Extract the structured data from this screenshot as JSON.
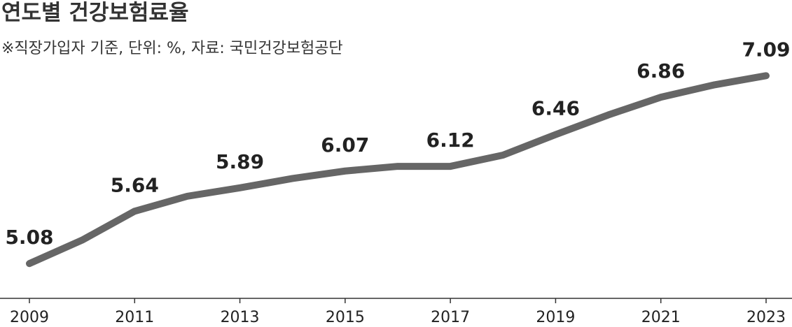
{
  "chart_data": {
    "type": "line",
    "title": "연도별 건강보험료율",
    "subtitle": "※직장가입자 기준, 단위: %, 자료: 국민건강보험공단",
    "x": [
      2009,
      2010,
      2011,
      2012,
      2013,
      2014,
      2015,
      2016,
      2017,
      2018,
      2019,
      2020,
      2021,
      2022,
      2023
    ],
    "values": [
      5.08,
      5.33,
      5.64,
      5.8,
      5.89,
      5.99,
      6.07,
      6.12,
      6.12,
      6.24,
      6.46,
      6.67,
      6.86,
      6.99,
      7.09
    ],
    "color": "#666666",
    "xlim": [
      2009,
      2023
    ],
    "xticks": [
      2009,
      2011,
      2013,
      2015,
      2017,
      2019,
      2021,
      2023
    ],
    "ylim": [
      4.7,
      7.9
    ]
  }
}
